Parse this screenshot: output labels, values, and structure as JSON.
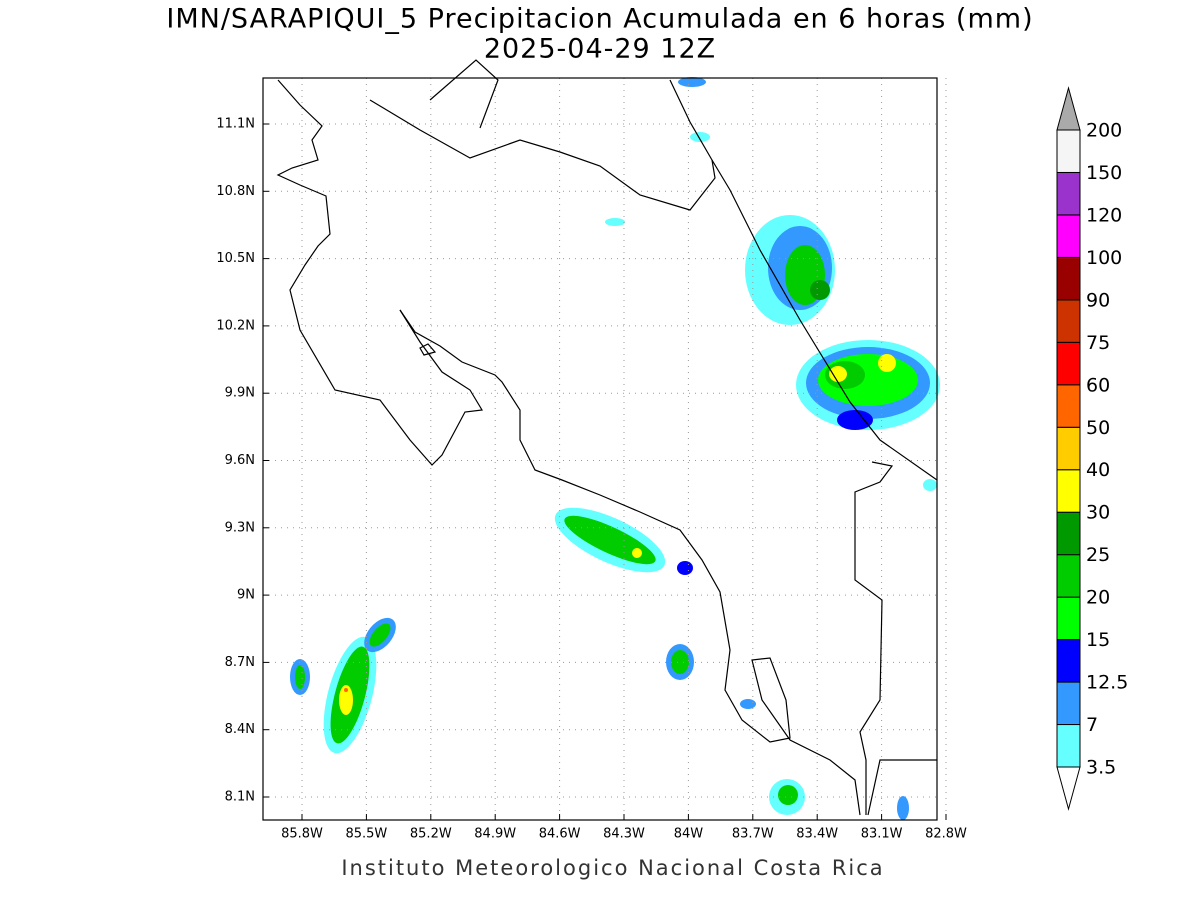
{
  "title": "IMN/SARAPIQUI_5 Precipitacion Acumulada en 6 horas (mm)",
  "subtitle": "2025-04-29 12Z",
  "lat_labels": [
    "11.1N",
    "10.8N",
    "10.5N",
    "10.2N",
    "9.9N",
    "9.6N",
    "9.3N",
    "9N",
    "8.7N",
    "8.4N",
    "8.1N"
  ],
  "lon_labels": [
    "85.8W",
    "85.5W",
    "85.2W",
    "84.9W",
    "84.6W",
    "84.3W",
    "84W",
    "83.7W",
    "83.4W",
    "83.1W",
    "82.8W"
  ],
  "colorbar": {
    "levels": [
      3.5,
      7,
      12.5,
      15,
      20,
      25,
      30,
      40,
      50,
      60,
      75,
      90,
      100,
      120,
      150,
      200
    ],
    "colors": [
      "#66ffff",
      "#3399ff",
      "#0000ff",
      "#00ff00",
      "#00cc00",
      "#009900",
      "#ffff00",
      "#ffcc00",
      "#ff6600",
      "#ff0000",
      "#cc3300",
      "#990000",
      "#ff00ff",
      "#9933cc",
      "#f5f5f5"
    ],
    "over_color": "#aaaaaa",
    "under_color": "#ffffff"
  },
  "footer": "Instituto Meteorologico Nacional Costa Rica"
}
